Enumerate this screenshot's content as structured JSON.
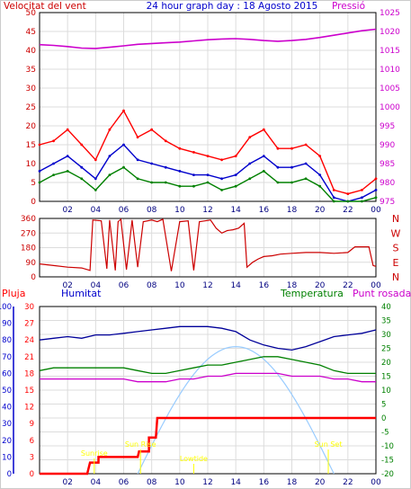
{
  "chart_data": [
    {
      "type": "line",
      "title": "24 hour graph day : 18 Agosto 2015",
      "left_title": "Velocitat del vent",
      "right_title": "Pressió",
      "x_ticks": [
        "02",
        "04",
        "06",
        "08",
        "10",
        "12",
        "14",
        "16",
        "18",
        "20",
        "22",
        "00"
      ],
      "y_left_ticks": [
        "0",
        "5",
        "10",
        "15",
        "20",
        "25",
        "30",
        "35",
        "40",
        "45",
        "50"
      ],
      "y_right_ticks": [
        "975",
        "980",
        "985",
        "990",
        "995",
        "1000",
        "1005",
        "1010",
        "1015",
        "1020",
        "1025"
      ],
      "y_left_range": [
        0,
        50
      ],
      "y_right_range": [
        975,
        1025
      ],
      "grid": true,
      "colors": {
        "gust": "#ff0000",
        "wind_avg": "#0000cc",
        "wind_speed": "#008000",
        "pressure": "#cc00cc",
        "axis_left": "#cc0000",
        "axis_right": "#cc00cc"
      },
      "series": [
        {
          "key": "pressure",
          "axis": "right",
          "x": [
            0,
            1,
            2,
            3,
            4,
            5,
            6,
            7,
            8,
            9,
            10,
            11,
            12,
            13,
            14,
            15,
            16,
            17,
            18,
            19,
            20,
            21,
            22,
            23,
            24
          ],
          "values": [
            1016.5,
            1016.3,
            1016.0,
            1015.6,
            1015.5,
            1015.8,
            1016.2,
            1016.6,
            1016.8,
            1017.0,
            1017.2,
            1017.5,
            1017.8,
            1018.0,
            1018.1,
            1017.9,
            1017.6,
            1017.4,
            1017.6,
            1017.9,
            1018.4,
            1019.0,
            1019.6,
            1020.2,
            1020.6
          ]
        },
        {
          "key": "gust",
          "axis": "left",
          "x": [
            0,
            1,
            2,
            3,
            4,
            5,
            6,
            7,
            8,
            9,
            10,
            11,
            12,
            13,
            14,
            15,
            16,
            17,
            18,
            19,
            20,
            21,
            22,
            23,
            24
          ],
          "values": [
            15,
            16,
            19,
            15,
            11,
            19,
            24,
            17,
            19,
            16,
            14,
            13,
            12,
            11,
            12,
            17,
            19,
            14,
            14,
            15,
            12,
            3,
            2,
            3,
            6
          ]
        },
        {
          "key": "wind_avg",
          "axis": "left",
          "x": [
            0,
            1,
            2,
            3,
            4,
            5,
            6,
            7,
            8,
            9,
            10,
            11,
            12,
            13,
            14,
            15,
            16,
            17,
            18,
            19,
            20,
            21,
            22,
            23,
            24
          ],
          "values": [
            8,
            10,
            12,
            9,
            6,
            12,
            15,
            11,
            10,
            9,
            8,
            7,
            7,
            6,
            7,
            10,
            12,
            9,
            9,
            10,
            7,
            1,
            0,
            1,
            3
          ]
        },
        {
          "key": "wind_speed",
          "axis": "left",
          "x": [
            0,
            1,
            2,
            3,
            4,
            5,
            6,
            7,
            8,
            9,
            10,
            11,
            12,
            13,
            14,
            15,
            16,
            17,
            18,
            19,
            20,
            21,
            22,
            23,
            24
          ],
          "values": [
            5,
            7,
            8,
            6,
            3,
            7,
            9,
            6,
            5,
            5,
            4,
            4,
            5,
            3,
            4,
            6,
            8,
            5,
            5,
            6,
            4,
            0,
            0,
            0,
            1
          ]
        }
      ]
    },
    {
      "type": "line",
      "y_right_labels": [
        "N",
        "W",
        "S",
        "E",
        "N"
      ],
      "y_left_ticks": [
        "0",
        "90",
        "180",
        "270",
        "360"
      ],
      "y_range": [
        0,
        360
      ],
      "x_ticks": [
        "02",
        "04",
        "06",
        "08",
        "10",
        "12",
        "14",
        "16",
        "18",
        "20",
        "22",
        "00"
      ],
      "grid": true,
      "colors": {
        "direction": "#cc0000",
        "axis_right": "#cc0000"
      },
      "series": [
        {
          "key": "wind_direction",
          "x": [
            0,
            1,
            2,
            3,
            3.6,
            3.8,
            4.4,
            4.8,
            5.0,
            5.4,
            5.6,
            5.8,
            6.2,
            6.6,
            7.0,
            7.4,
            8.0,
            8.4,
            8.8,
            9.4,
            10.0,
            10.6,
            11.0,
            11.4,
            11.8,
            12.2,
            12.6,
            13.0,
            13.4,
            13.8,
            14.2,
            14.6,
            14.8,
            15.2,
            15.6,
            16.0,
            16.6,
            17.2,
            18,
            19,
            20,
            21,
            22,
            22.5,
            23.5,
            23.8,
            24
          ],
          "values": [
            80,
            70,
            60,
            55,
            40,
            350,
            345,
            50,
            350,
            40,
            340,
            355,
            45,
            350,
            60,
            340,
            350,
            340,
            355,
            35,
            340,
            345,
            40,
            340,
            345,
            350,
            300,
            270,
            285,
            290,
            300,
            330,
            60,
            90,
            110,
            125,
            130,
            140,
            145,
            150,
            150,
            145,
            150,
            185,
            185,
            70,
            65
          ]
        }
      ]
    },
    {
      "type": "line",
      "label_pluja": "Pluja",
      "label_humitat": "Humitat",
      "label_temperatura": "Temperatura",
      "label_punt_rosada": "Punt rosada",
      "x_ticks": [
        "02",
        "04",
        "06",
        "08",
        "10",
        "12",
        "14",
        "16",
        "18",
        "20",
        "22",
        "00"
      ],
      "y_humidity_ticks": [
        "0",
        "10",
        "20",
        "30",
        "40",
        "50",
        "60",
        "70",
        "80",
        "90",
        "100"
      ],
      "y_rain_ticks": [
        "0",
        "3",
        "6",
        "9",
        "12",
        "15",
        "18",
        "21",
        "24",
        "27",
        "30"
      ],
      "y_temp_ticks": [
        "-20",
        "-15",
        "-10",
        "-5",
        "0",
        "5",
        "10",
        "15",
        "20",
        "25",
        "30",
        "35",
        "40"
      ],
      "y_humidity_range": [
        0,
        100
      ],
      "y_rain_range": [
        0,
        30
      ],
      "y_temp_range": [
        -20,
        40
      ],
      "grid": true,
      "colors": {
        "rain": "#ff0000",
        "humidity": "#000099",
        "temperature": "#008000",
        "dew_point": "#cc00cc",
        "sun": "#99ccff",
        "events": "#ffff00",
        "axis_rain": "#ff0000",
        "axis_hum": "#0000cc",
        "axis_temp": "#008000"
      },
      "annotations": [
        "Sunrise",
        "Sun Rise",
        "Lowtide",
        "Sun Set"
      ],
      "series": [
        {
          "key": "humidity",
          "axis": "humidity",
          "x": [
            0,
            1,
            2,
            3,
            4,
            5,
            6,
            7,
            8,
            9,
            10,
            11,
            12,
            13,
            14,
            15,
            16,
            17,
            18,
            19,
            20,
            21,
            22,
            23,
            24
          ],
          "values": [
            80,
            81,
            82,
            81,
            83,
            83,
            84,
            85,
            86,
            87,
            88,
            88,
            88,
            87,
            85,
            80,
            77,
            75,
            74,
            76,
            79,
            82,
            83,
            84,
            86
          ]
        },
        {
          "key": "temperature",
          "axis": "temp",
          "x": [
            0,
            1,
            2,
            3,
            4,
            5,
            6,
            7,
            8,
            9,
            10,
            11,
            12,
            13,
            14,
            15,
            16,
            17,
            18,
            19,
            20,
            21,
            22,
            23,
            24
          ],
          "values": [
            17,
            18,
            18,
            18,
            18,
            18,
            18,
            17,
            16,
            16,
            17,
            18,
            19,
            19,
            20,
            21,
            22,
            22,
            21,
            20,
            19,
            17,
            16,
            16,
            16
          ]
        },
        {
          "key": "dew_point",
          "axis": "temp",
          "x": [
            0,
            1,
            2,
            3,
            4,
            5,
            6,
            7,
            8,
            9,
            10,
            11,
            12,
            13,
            14,
            15,
            16,
            17,
            18,
            19,
            20,
            21,
            22,
            23,
            24
          ],
          "values": [
            14,
            14,
            14,
            14,
            14,
            14,
            14,
            13,
            13,
            13,
            14,
            14,
            15,
            15,
            16,
            16,
            16,
            16,
            15,
            15,
            15,
            14,
            14,
            13,
            13
          ]
        },
        {
          "key": "rain",
          "axis": "rain",
          "x": [
            0,
            3.4,
            3.6,
            4.2,
            4.2,
            7.0,
            7.1,
            7.8,
            7.8,
            8.3,
            8.4,
            24
          ],
          "values": [
            0,
            0,
            2,
            2,
            3,
            3,
            4,
            4,
            6.5,
            6.5,
            10,
            10
          ]
        }
      ]
    }
  ]
}
